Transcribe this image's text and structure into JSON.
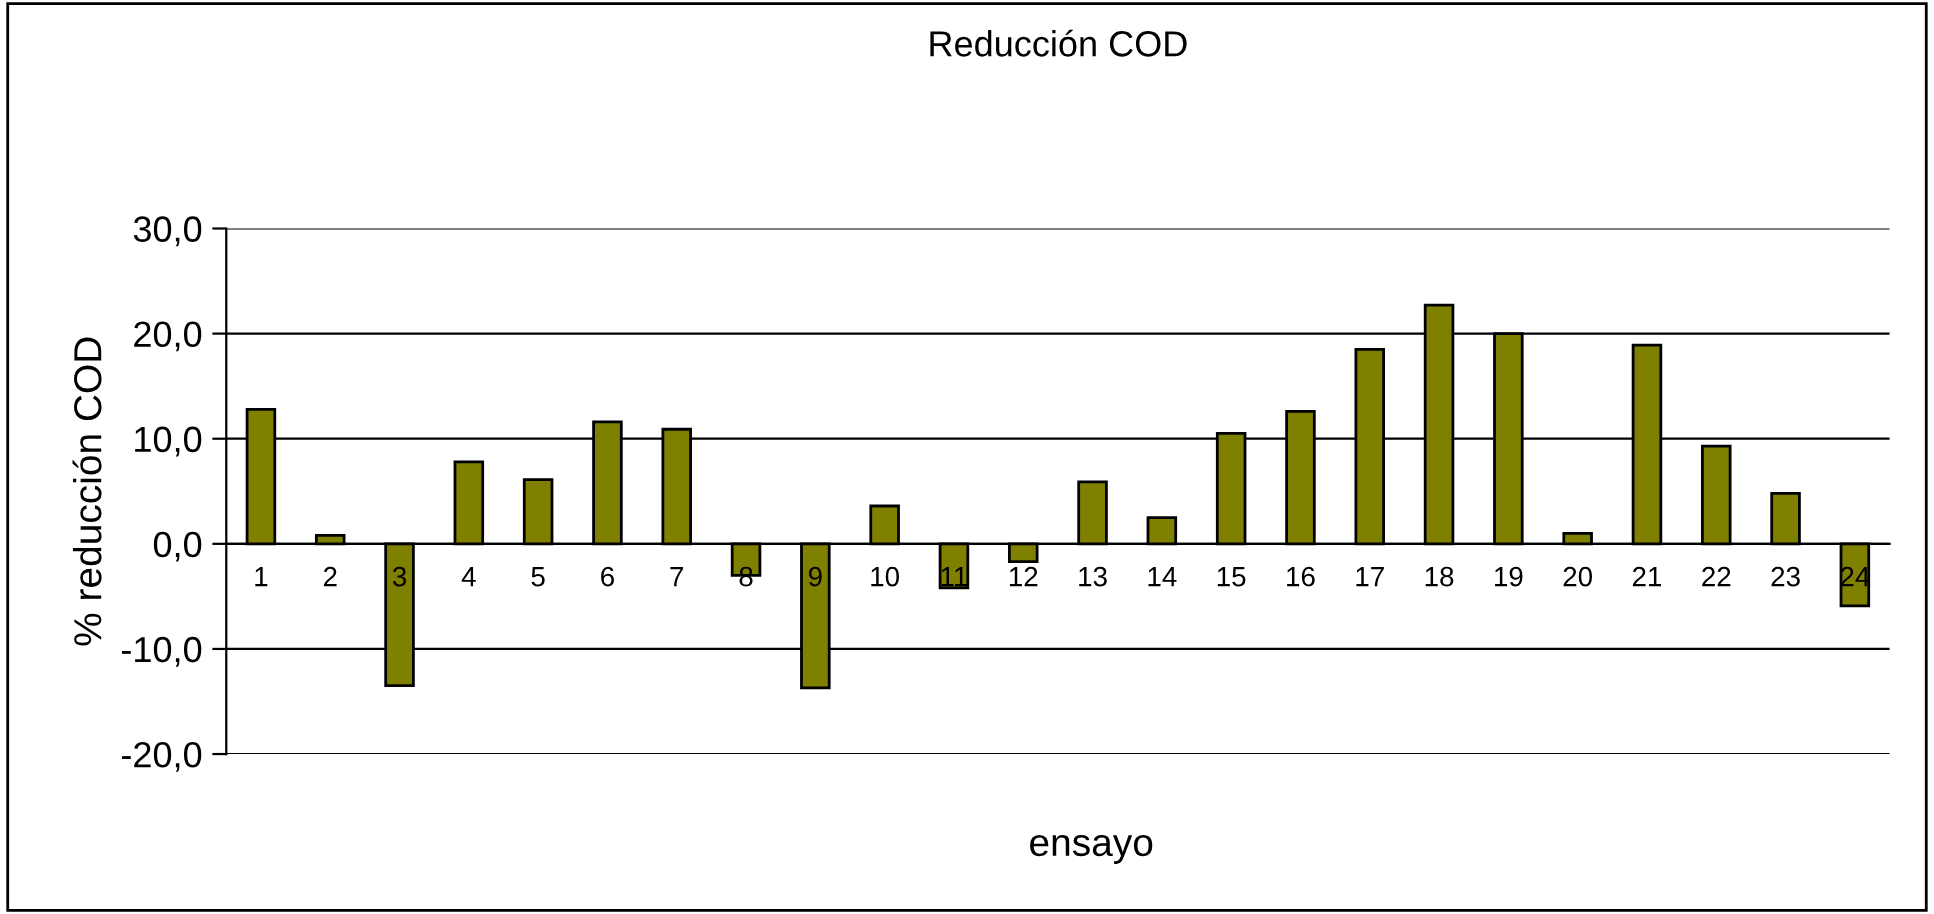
{
  "chart_data": {
    "type": "bar",
    "title": "Reducción COD",
    "xlabel": "ensayo",
    "ylabel": "% reducción COD",
    "categories": [
      "1",
      "2",
      "3",
      "4",
      "5",
      "6",
      "7",
      "8",
      "9",
      "10",
      "11",
      "12",
      "13",
      "14",
      "15",
      "16",
      "17",
      "18",
      "19",
      "20",
      "21",
      "22",
      "23",
      "24"
    ],
    "values": [
      12.8,
      0.8,
      -13.5,
      7.8,
      6.1,
      11.6,
      10.9,
      -3.0,
      -13.7,
      3.6,
      -4.2,
      -1.7,
      5.9,
      2.5,
      10.5,
      12.6,
      18.5,
      22.7,
      20.0,
      1.0,
      18.9,
      9.3,
      4.8,
      -5.9
    ],
    "color": "#808000",
    "ylim": [
      -20,
      30
    ],
    "yticks": [
      {
        "value": -20,
        "label": "-20,0"
      },
      {
        "value": -10,
        "label": "-10,0"
      },
      {
        "value": 0,
        "label": "0,0"
      },
      {
        "value": 10,
        "label": "10,0"
      },
      {
        "value": 20,
        "label": "20,0"
      },
      {
        "value": 30,
        "label": "30,0"
      }
    ],
    "grid": "y",
    "legend": false
  }
}
